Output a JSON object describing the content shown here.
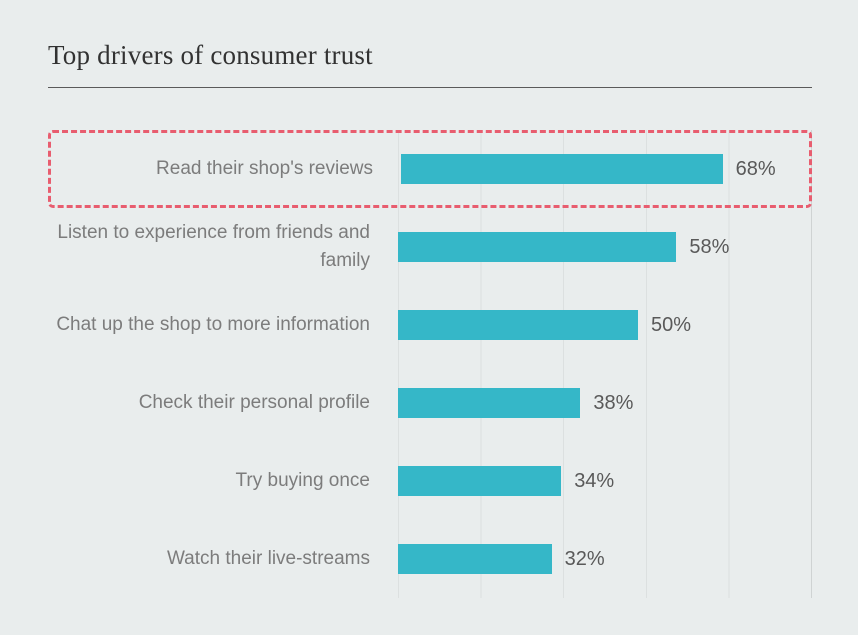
{
  "page": {
    "background_color": "#e9eded"
  },
  "header": {
    "title": "Top drivers of consumer trust"
  },
  "chart_data": {
    "type": "bar",
    "orientation": "horizontal",
    "title": "Top drivers of consumer trust",
    "categories": [
      "Read their shop's reviews",
      "Listen to experience from friends and family",
      "Chat up the shop to more information",
      "Check their personal profile",
      "Try buying once",
      "Watch their live-streams"
    ],
    "values": [
      68,
      58,
      50,
      38,
      34,
      32
    ],
    "value_suffix": "%",
    "xlim": [
      0,
      85
    ],
    "grid": true,
    "bar_color": "#35b7c8",
    "highlight_index": 0,
    "highlight_color": "#e85d6f",
    "label_color": "#7c7c7c",
    "value_color": "#595959"
  }
}
